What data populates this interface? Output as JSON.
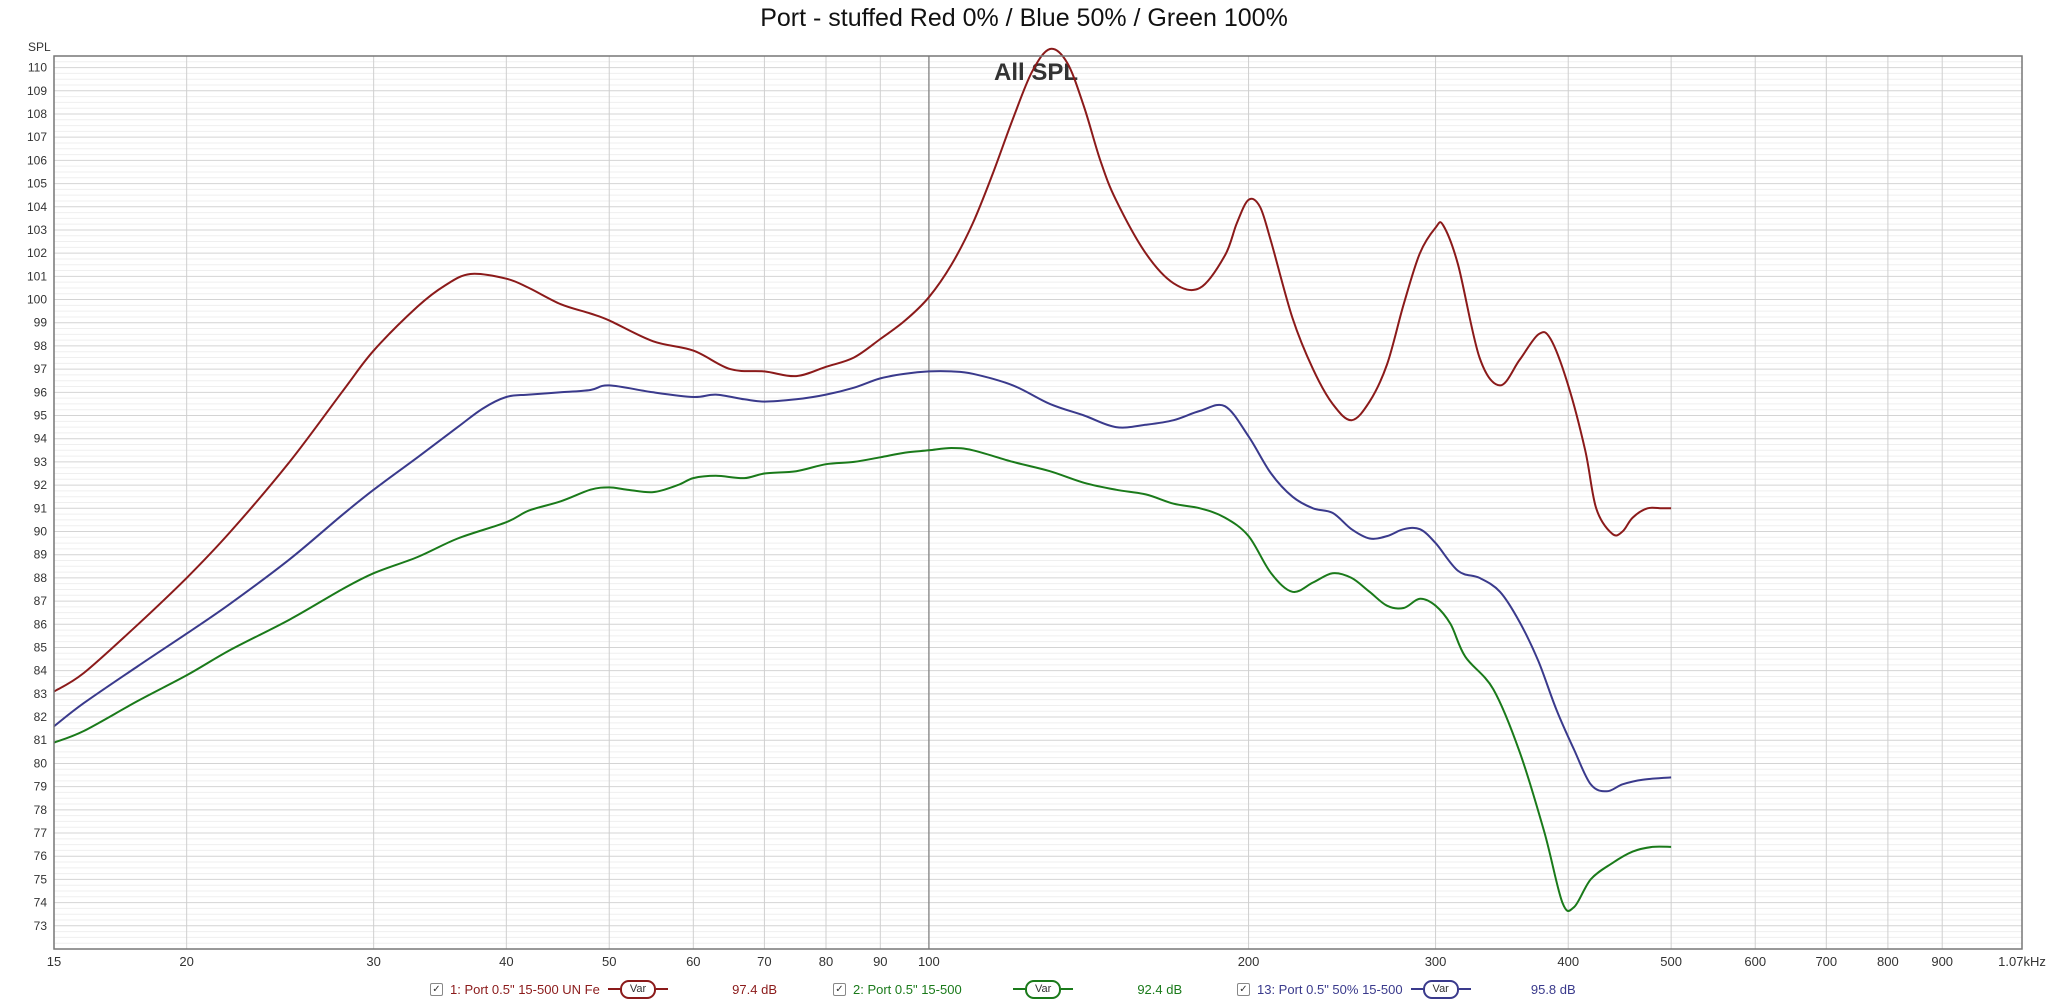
{
  "chart_data": {
    "type": "line",
    "title": "Port - stuffed Red 0% / Blue 50% / Green 100%",
    "subtitle": "All SPL",
    "ylabel": "SPL",
    "xscale": "log",
    "xlim": [
      15,
      1070
    ],
    "ylim": [
      72,
      110.5
    ],
    "grid": true,
    "y_ticks": [
      73,
      74,
      75,
      76,
      77,
      78,
      79,
      80,
      81,
      82,
      83,
      84,
      85,
      86,
      87,
      88,
      89,
      90,
      91,
      92,
      93,
      94,
      95,
      96,
      97,
      98,
      99,
      100,
      101,
      102,
      103,
      104,
      105,
      106,
      107,
      108,
      109,
      110
    ],
    "x_ticks": [
      {
        "v": 15,
        "label": "15"
      },
      {
        "v": 20,
        "label": "20"
      },
      {
        "v": 30,
        "label": "30"
      },
      {
        "v": 40,
        "label": "40"
      },
      {
        "v": 50,
        "label": "50"
      },
      {
        "v": 60,
        "label": "60"
      },
      {
        "v": 70,
        "label": "70"
      },
      {
        "v": 80,
        "label": "80"
      },
      {
        "v": 90,
        "label": "90"
      },
      {
        "v": 100,
        "label": "100"
      },
      {
        "v": 200,
        "label": "200"
      },
      {
        "v": 300,
        "label": "300"
      },
      {
        "v": 400,
        "label": "400"
      },
      {
        "v": 500,
        "label": "500"
      },
      {
        "v": 600,
        "label": "600"
      },
      {
        "v": 700,
        "label": "700"
      },
      {
        "v": 800,
        "label": "800"
      },
      {
        "v": 900,
        "label": "900"
      },
      {
        "v": 1070,
        "label": "1.07kHz"
      }
    ],
    "series": [
      {
        "name": "1: Port 0.5\" 15-500 UN Fe",
        "color": "#8b1a1a",
        "points": [
          [
            15,
            83.1
          ],
          [
            16,
            83.9
          ],
          [
            18,
            86.0
          ],
          [
            20,
            88.0
          ],
          [
            22,
            90.0
          ],
          [
            25,
            93.0
          ],
          [
            28,
            96.0
          ],
          [
            30,
            97.8
          ],
          [
            33,
            99.7
          ],
          [
            35,
            100.6
          ],
          [
            37,
            101.1
          ],
          [
            40,
            100.9
          ],
          [
            42,
            100.5
          ],
          [
            45,
            99.8
          ],
          [
            48,
            99.4
          ],
          [
            50,
            99.1
          ],
          [
            55,
            98.2
          ],
          [
            60,
            97.8
          ],
          [
            65,
            97.0
          ],
          [
            70,
            96.9
          ],
          [
            75,
            96.7
          ],
          [
            80,
            97.1
          ],
          [
            85,
            97.5
          ],
          [
            90,
            98.3
          ],
          [
            95,
            99.1
          ],
          [
            100,
            100.1
          ],
          [
            105,
            101.5
          ],
          [
            110,
            103.3
          ],
          [
            115,
            105.5
          ],
          [
            120,
            107.8
          ],
          [
            125,
            109.8
          ],
          [
            130,
            110.8
          ],
          [
            135,
            110.2
          ],
          [
            140,
            108.3
          ],
          [
            145,
            106.0
          ],
          [
            150,
            104.3
          ],
          [
            160,
            102.0
          ],
          [
            170,
            100.7
          ],
          [
            180,
            100.5
          ],
          [
            190,
            101.9
          ],
          [
            195,
            103.3
          ],
          [
            200,
            104.3
          ],
          [
            205,
            104.0
          ],
          [
            210,
            102.5
          ],
          [
            220,
            99.2
          ],
          [
            230,
            97.0
          ],
          [
            240,
            95.5
          ],
          [
            250,
            94.8
          ],
          [
            260,
            95.6
          ],
          [
            270,
            97.2
          ],
          [
            280,
            99.8
          ],
          [
            290,
            102.0
          ],
          [
            300,
            103.1
          ],
          [
            305,
            103.2
          ],
          [
            315,
            101.5
          ],
          [
            330,
            97.5
          ],
          [
            345,
            96.3
          ],
          [
            360,
            97.4
          ],
          [
            375,
            98.5
          ],
          [
            385,
            98.3
          ],
          [
            400,
            96.3
          ],
          [
            415,
            93.5
          ],
          [
            425,
            91.0
          ],
          [
            440,
            89.9
          ],
          [
            450,
            90.0
          ],
          [
            460,
            90.6
          ],
          [
            475,
            91.0
          ],
          [
            490,
            91.0
          ],
          [
            500,
            91.0
          ]
        ]
      },
      {
        "name": "2: Port 0.5\" 15-500",
        "color": "#1a7a1a",
        "points": [
          [
            15,
            80.9
          ],
          [
            16,
            81.4
          ],
          [
            18,
            82.7
          ],
          [
            20,
            83.8
          ],
          [
            22,
            84.9
          ],
          [
            25,
            86.2
          ],
          [
            28,
            87.5
          ],
          [
            30,
            88.2
          ],
          [
            33,
            88.9
          ],
          [
            36,
            89.7
          ],
          [
            40,
            90.4
          ],
          [
            42,
            90.9
          ],
          [
            45,
            91.3
          ],
          [
            48,
            91.8
          ],
          [
            50,
            91.9
          ],
          [
            52,
            91.8
          ],
          [
            55,
            91.7
          ],
          [
            58,
            92.0
          ],
          [
            60,
            92.3
          ],
          [
            63,
            92.4
          ],
          [
            67,
            92.3
          ],
          [
            70,
            92.5
          ],
          [
            75,
            92.6
          ],
          [
            80,
            92.9
          ],
          [
            85,
            93.0
          ],
          [
            90,
            93.2
          ],
          [
            95,
            93.4
          ],
          [
            100,
            93.5
          ],
          [
            105,
            93.6
          ],
          [
            110,
            93.5
          ],
          [
            120,
            93.0
          ],
          [
            130,
            92.6
          ],
          [
            140,
            92.1
          ],
          [
            150,
            91.8
          ],
          [
            160,
            91.6
          ],
          [
            170,
            91.2
          ],
          [
            180,
            91.0
          ],
          [
            190,
            90.6
          ],
          [
            200,
            89.8
          ],
          [
            210,
            88.2
          ],
          [
            220,
            87.4
          ],
          [
            230,
            87.8
          ],
          [
            240,
            88.2
          ],
          [
            250,
            88.0
          ],
          [
            260,
            87.4
          ],
          [
            270,
            86.8
          ],
          [
            280,
            86.7
          ],
          [
            290,
            87.1
          ],
          [
            300,
            86.8
          ],
          [
            310,
            86.0
          ],
          [
            320,
            84.6
          ],
          [
            340,
            83.2
          ],
          [
            360,
            80.5
          ],
          [
            380,
            77.0
          ],
          [
            395,
            74.0
          ],
          [
            405,
            73.8
          ],
          [
            420,
            75.0
          ],
          [
            440,
            75.7
          ],
          [
            460,
            76.2
          ],
          [
            480,
            76.4
          ],
          [
            500,
            76.4
          ]
        ]
      },
      {
        "name": "13: Port 0.5\" 50% 15-500",
        "color": "#3a3a8c",
        "points": [
          [
            15,
            81.6
          ],
          [
            16,
            82.6
          ],
          [
            18,
            84.2
          ],
          [
            20,
            85.6
          ],
          [
            22,
            86.9
          ],
          [
            25,
            88.8
          ],
          [
            28,
            90.7
          ],
          [
            30,
            91.8
          ],
          [
            33,
            93.2
          ],
          [
            36,
            94.5
          ],
          [
            38,
            95.3
          ],
          [
            40,
            95.8
          ],
          [
            42,
            95.9
          ],
          [
            45,
            96.0
          ],
          [
            48,
            96.1
          ],
          [
            50,
            96.3
          ],
          [
            55,
            96.0
          ],
          [
            60,
            95.8
          ],
          [
            63,
            95.9
          ],
          [
            67,
            95.7
          ],
          [
            70,
            95.6
          ],
          [
            75,
            95.7
          ],
          [
            80,
            95.9
          ],
          [
            85,
            96.2
          ],
          [
            90,
            96.6
          ],
          [
            95,
            96.8
          ],
          [
            100,
            96.9
          ],
          [
            105,
            96.9
          ],
          [
            110,
            96.8
          ],
          [
            120,
            96.3
          ],
          [
            130,
            95.5
          ],
          [
            140,
            95.0
          ],
          [
            150,
            94.5
          ],
          [
            160,
            94.6
          ],
          [
            170,
            94.8
          ],
          [
            180,
            95.2
          ],
          [
            190,
            95.4
          ],
          [
            200,
            94.1
          ],
          [
            210,
            92.5
          ],
          [
            220,
            91.5
          ],
          [
            230,
            91.0
          ],
          [
            240,
            90.8
          ],
          [
            250,
            90.1
          ],
          [
            260,
            89.7
          ],
          [
            270,
            89.8
          ],
          [
            280,
            90.1
          ],
          [
            290,
            90.1
          ],
          [
            300,
            89.5
          ],
          [
            315,
            88.3
          ],
          [
            330,
            88.0
          ],
          [
            345,
            87.4
          ],
          [
            360,
            86.1
          ],
          [
            375,
            84.4
          ],
          [
            390,
            82.3
          ],
          [
            405,
            80.6
          ],
          [
            420,
            79.1
          ],
          [
            435,
            78.8
          ],
          [
            450,
            79.1
          ],
          [
            470,
            79.3
          ],
          [
            500,
            79.4
          ]
        ]
      }
    ],
    "legend": [
      {
        "label": "1: Port 0.5\" 15-500 UN Fe",
        "var_label": "Var",
        "value": "97.4 dB",
        "color": "#8b1a1a"
      },
      {
        "label": "2: Port 0.5\" 15-500",
        "var_label": "Var",
        "value": "92.4 dB",
        "color": "#1a7a1a"
      },
      {
        "label": "13: Port 0.5\" 50% 15-500",
        "var_label": "Var",
        "value": "95.8 dB",
        "color": "#3a3a8c"
      }
    ]
  }
}
